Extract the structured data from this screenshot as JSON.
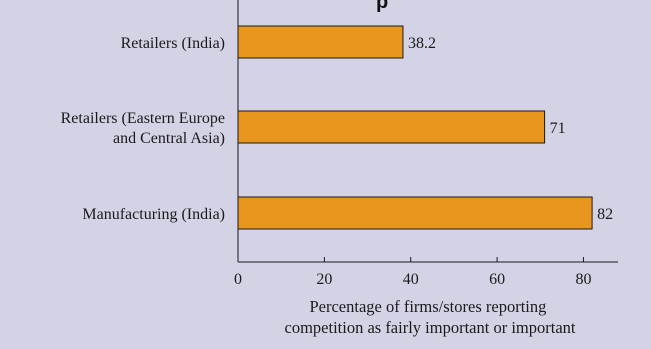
{
  "title_fragment": "p",
  "colors": {
    "background": "#d4d3e6",
    "bar": "#e8961e",
    "bar_stroke": "#1a1a1a",
    "axis": "#1a1a1a"
  },
  "chart_data": {
    "type": "bar",
    "orientation": "horizontal",
    "categories": [
      [
        "Retailers (India)"
      ],
      [
        "Retailers (Eastern Europe",
        "and Central Asia)"
      ],
      [
        "Manufacturing (India)"
      ]
    ],
    "values": [
      38.2,
      71,
      82
    ],
    "value_labels": [
      "38.2",
      "71",
      "82"
    ],
    "xticks": [
      "0",
      "20",
      "40",
      "60",
      "80"
    ],
    "xlim": [
      0,
      88
    ],
    "xlabel": [
      "Percentage of firms/stores reporting",
      "competition as fairly important or important"
    ],
    "grid": false,
    "legend": "none"
  }
}
